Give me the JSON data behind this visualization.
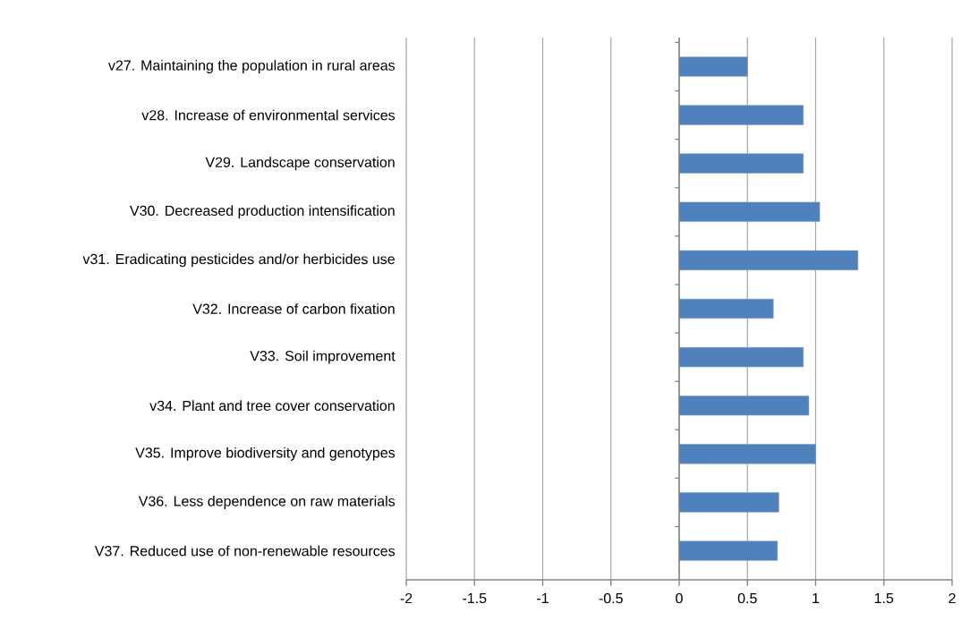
{
  "chart_data": {
    "type": "bar",
    "orientation": "horizontal",
    "categories": [
      "v27. Maintaining the population in rural areas",
      "v28. Increase of environmental services",
      "V29. Landscape conservation",
      "V30. Decreased production intensification",
      "v31. Eradicating pesticides and/or herbicides use",
      "V32. Increase of carbon fixation",
      "V33. Soil improvement",
      "v34. Plant and tree cover conservation",
      "V35. Improve biodiversity and genotypes",
      "V36. Less dependence on raw materials",
      "V37. Reduced use of non-renewable resources"
    ],
    "values": [
      0.5,
      0.91,
      0.91,
      1.03,
      1.31,
      0.69,
      0.91,
      0.95,
      1.0,
      0.73,
      0.72
    ],
    "color": "#4f81bd",
    "xlim": [
      -2,
      2
    ],
    "xticks": [
      -2,
      -1.5,
      -1,
      -0.5,
      0,
      0.5,
      1,
      1.5,
      2
    ],
    "grid": "x"
  }
}
